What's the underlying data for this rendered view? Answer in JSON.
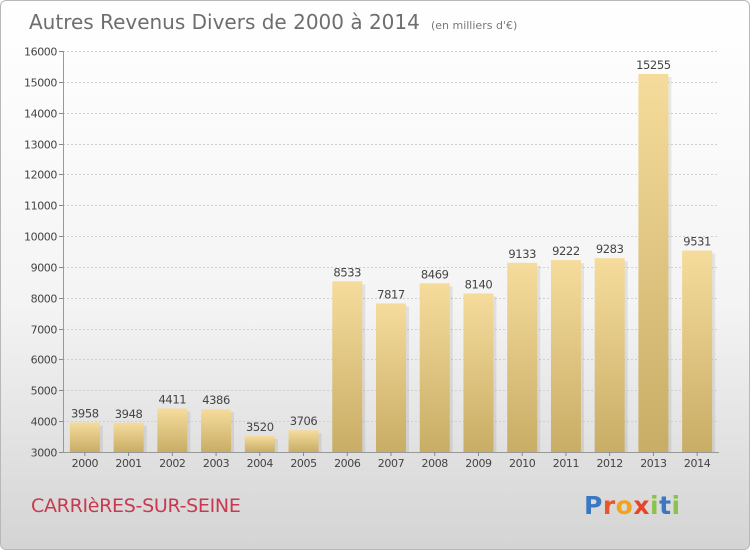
{
  "header": {
    "title": "Autres Revenus Divers de 2000 à 2014",
    "subtitle": "(en milliers d'€)"
  },
  "footer": {
    "city": "CARRIèRES-SUR-SEINE",
    "logo_letters": [
      "P",
      "r",
      "o",
      "x",
      "i",
      "t",
      "i"
    ],
    "logo_colors": [
      "#3a78c3",
      "#e8572a",
      "#f2a31b",
      "#e8442a",
      "#8bc34a",
      "#3a78c3",
      "#8bc34a"
    ]
  },
  "chart_data": {
    "type": "bar",
    "categories": [
      "2000",
      "2001",
      "2002",
      "2003",
      "2004",
      "2005",
      "2006",
      "2007",
      "2008",
      "2009",
      "2010",
      "2011",
      "2012",
      "2013",
      "2014"
    ],
    "values": [
      3958,
      3948,
      4411,
      4386,
      3520,
      3706,
      8533,
      7817,
      8469,
      8140,
      9133,
      9222,
      9283,
      15255,
      9531
    ],
    "ylim": [
      3000,
      16000
    ],
    "yticks": [
      3000,
      4000,
      5000,
      6000,
      7000,
      8000,
      9000,
      10000,
      11000,
      12000,
      13000,
      14000,
      15000,
      16000
    ],
    "grid": true,
    "bar_color_top": "#f6dc9c",
    "bar_color_bottom": "#c8ad66"
  }
}
